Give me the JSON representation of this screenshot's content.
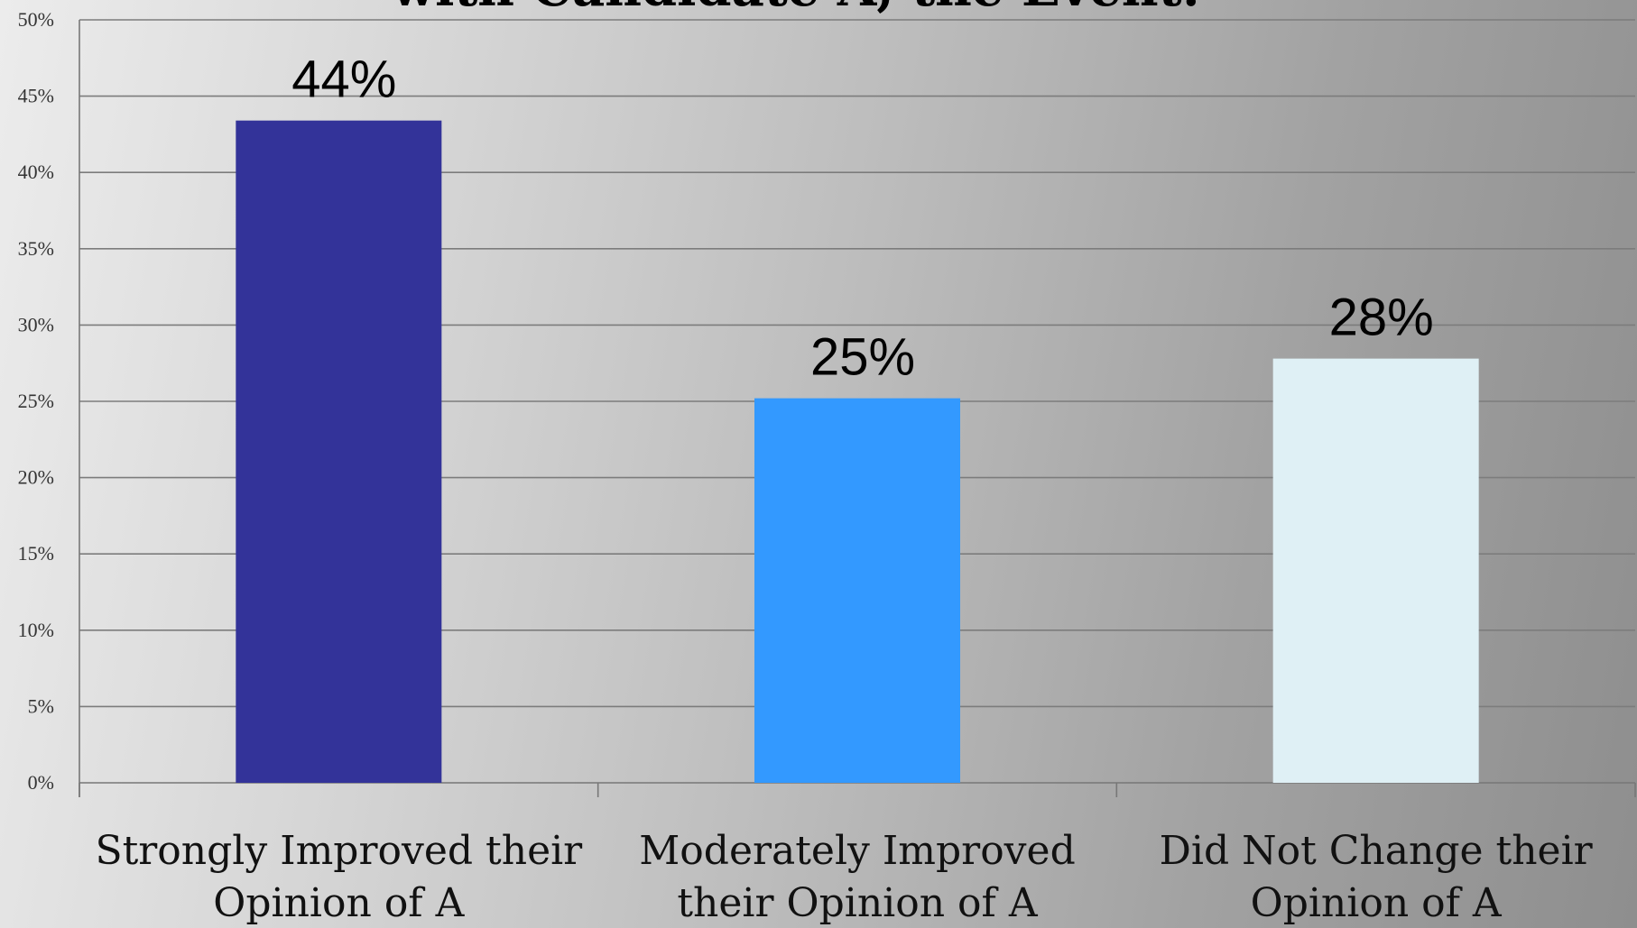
{
  "chart_data": {
    "type": "bar",
    "title": "with Candidate A, the Event:",
    "categories": [
      [
        "Strongly Improved their",
        "Opinion of A"
      ],
      [
        "Moderately Improved",
        "their Opinion of A"
      ],
      [
        "Did Not Change their",
        "Opinion of A"
      ]
    ],
    "values": [
      44,
      25,
      28
    ],
    "value_labels": [
      "44%",
      "25%",
      "28%"
    ],
    "bar_values": [
      43.4,
      25.2,
      27.8
    ],
    "bar_colors": [
      "#333399",
      "#3399ff",
      "#dff0f5"
    ],
    "ylim": [
      0,
      50
    ],
    "yticks": [
      0,
      5,
      10,
      15,
      20,
      25,
      30,
      35,
      40,
      45,
      50
    ],
    "ytick_labels": [
      "0%",
      "5%",
      "10%",
      "15%",
      "20%",
      "25%",
      "30%",
      "35%",
      "40%",
      "45%",
      "50%"
    ],
    "grid": true,
    "legend": "none"
  }
}
